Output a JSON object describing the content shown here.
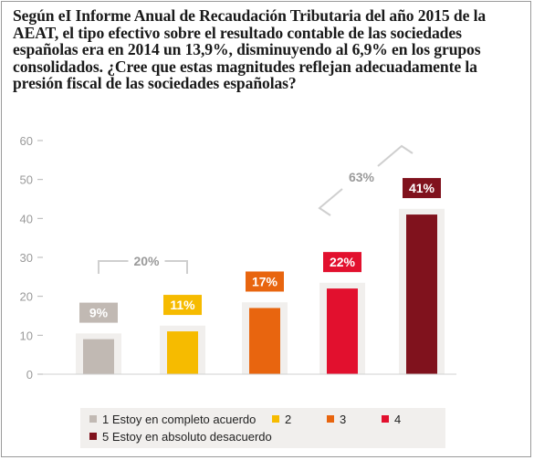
{
  "title": "Según eI Informe Anual de Recaudación Tributaria del año 2015 de la AEAT, el tipo efectivo sobre el resultado contable de las sociedades españolas era en 2014 un 13,9%, disminuyendo al 6,9% en los grupos consolidados. ¿Cree que estas magnitudes reflejan adecuadamente la presión fiscal de las sociedades españolas?",
  "chart_data": {
    "type": "bar",
    "categories": [
      "1 Estoy en completo acuerdo",
      "2",
      "3",
      "4",
      "5 Estoy en absoluto desacuerdo"
    ],
    "values": [
      9,
      11,
      17,
      22,
      41
    ],
    "value_labels": [
      "9%",
      "11%",
      "17%",
      "22%",
      "41%"
    ],
    "colors": [
      "#c1b9b3",
      "#f6bb00",
      "#e8650f",
      "#e2102e",
      "#80121d"
    ],
    "ylim": [
      0,
      60
    ],
    "yticks": [
      0,
      10,
      20,
      30,
      40,
      50,
      60
    ],
    "grid": false,
    "legend_position": "bottom",
    "annotations": [
      {
        "label": "20%",
        "from_category": 0,
        "to_category": 1
      },
      {
        "label": "63%",
        "from_category": 3,
        "to_category": 4
      }
    ]
  }
}
